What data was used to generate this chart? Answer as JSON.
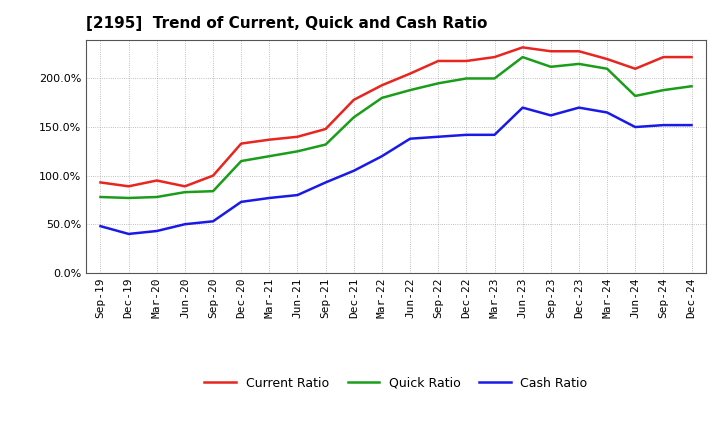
{
  "title": "[2195]  Trend of Current, Quick and Cash Ratio",
  "x_labels": [
    "Sep-19",
    "Dec-19",
    "Mar-20",
    "Jun-20",
    "Sep-20",
    "Dec-20",
    "Mar-21",
    "Jun-21",
    "Sep-21",
    "Dec-21",
    "Mar-22",
    "Jun-22",
    "Sep-22",
    "Dec-22",
    "Mar-23",
    "Jun-23",
    "Sep-23",
    "Dec-23",
    "Mar-24",
    "Jun-24",
    "Sep-24",
    "Dec-24"
  ],
  "current_ratio": [
    93,
    89,
    95,
    89,
    100,
    133,
    137,
    140,
    148,
    178,
    193,
    205,
    218,
    218,
    222,
    232,
    228,
    228,
    220,
    210,
    222,
    222
  ],
  "quick_ratio": [
    78,
    77,
    78,
    83,
    84,
    115,
    120,
    125,
    132,
    160,
    180,
    188,
    195,
    200,
    200,
    222,
    212,
    215,
    210,
    182,
    188,
    192
  ],
  "cash_ratio": [
    48,
    40,
    43,
    50,
    53,
    73,
    77,
    80,
    93,
    105,
    120,
    138,
    140,
    142,
    142,
    170,
    162,
    170,
    165,
    150,
    152,
    152
  ],
  "current_color": "#e8251e",
  "quick_color": "#1a9e1a",
  "cash_color": "#1a1ae8",
  "ylim": [
    0,
    240
  ],
  "yticks": [
    0,
    50,
    100,
    150,
    200
  ],
  "background_color": "#ffffff",
  "plot_bg_color": "#ffffff",
  "grid_color": "#aaaaaa",
  "legend_labels": [
    "Current Ratio",
    "Quick Ratio",
    "Cash Ratio"
  ],
  "title_fontsize": 11,
  "tick_fontsize": 8,
  "legend_fontsize": 9,
  "linewidth": 1.8
}
